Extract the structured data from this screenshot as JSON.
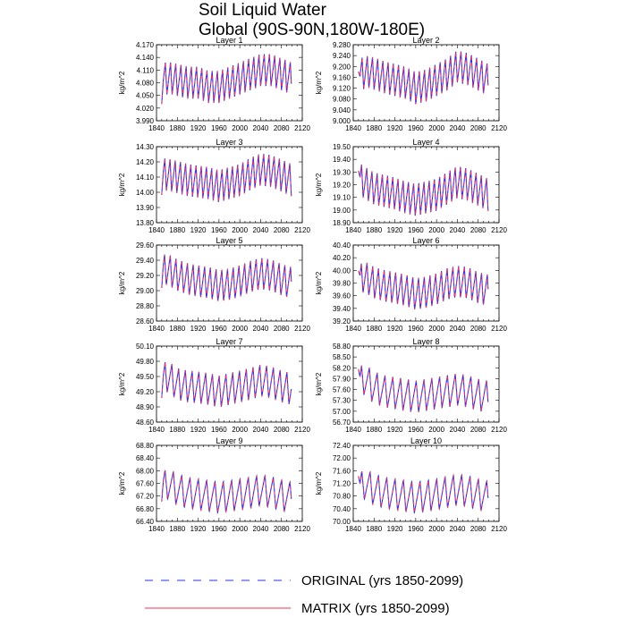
{
  "title_line1": "Soil Liquid Water",
  "title_line2": "Global (90S-90N,180W-180E)",
  "colors": {
    "original": "#2233ee",
    "matrix": "#ee3355",
    "axis": "#000000"
  },
  "legend": [
    {
      "label": "ORIGINAL (yrs 1850-2099)",
      "style": "dashed",
      "color": "#2233ee"
    },
    {
      "label": "MATRIX (yrs 1850-2099)",
      "style": "solid",
      "color": "#ee3355"
    }
  ],
  "chart_data": [
    {
      "type": "line",
      "title": "Layer 1",
      "ylabel": "kg/m^2",
      "xlabel": "",
      "x_range": [
        1850,
        2099
      ],
      "xlim": [
        1840,
        2120
      ],
      "xticks": [
        1840,
        1880,
        1920,
        1960,
        2000,
        2040,
        2080,
        2120
      ],
      "ylim": [
        3.99,
        4.17
      ],
      "yticks": [
        "3.990",
        "4.020",
        "4.050",
        "4.080",
        "4.110",
        "4.140",
        "4.170"
      ],
      "cycle_years": 10,
      "cycle_phase": 0,
      "seasonal_amp": 0.018,
      "envelope_points": {
        "x": [
          1850,
          1870,
          1900,
          1920,
          1940,
          1960,
          1980,
          2000,
          2020,
          2040,
          2060,
          2080,
          2099
        ],
        "y": [
          4.09,
          4.09,
          4.08,
          4.08,
          4.07,
          4.07,
          4.08,
          4.09,
          4.1,
          4.11,
          4.11,
          4.1,
          4.09
        ]
      },
      "series": [
        {
          "name": "ORIGINAL (yrs 1850-2099)"
        },
        {
          "name": "MATRIX (yrs 1850-2099)"
        }
      ]
    },
    {
      "type": "line",
      "title": "Layer 2",
      "ylabel": "kg/m^2",
      "xlabel": "",
      "x_range": [
        1850,
        2099
      ],
      "xlim": [
        1840,
        2120
      ],
      "xticks": [
        1840,
        1880,
        1920,
        1960,
        2000,
        2040,
        2080,
        2120
      ],
      "ylim": [
        9.0,
        9.28
      ],
      "yticks": [
        "9.000",
        "9.040",
        "9.080",
        "9.120",
        "9.160",
        "9.200",
        "9.240",
        "9.280"
      ],
      "cycle_years": 10,
      "cycle_phase": 0,
      "seasonal_amp": 0.03,
      "envelope_points": {
        "x": [
          1850,
          1870,
          1900,
          1920,
          1940,
          1960,
          1980,
          2000,
          2020,
          2040,
          2060,
          2080,
          2099
        ],
        "y": [
          9.17,
          9.18,
          9.16,
          9.15,
          9.14,
          9.12,
          9.13,
          9.15,
          9.17,
          9.2,
          9.19,
          9.17,
          9.15
        ]
      },
      "series": [
        {
          "name": "ORIGINAL (yrs 1850-2099)"
        },
        {
          "name": "MATRIX (yrs 1850-2099)"
        }
      ]
    },
    {
      "type": "line",
      "title": "Layer 3",
      "ylabel": "kg/m^2",
      "xlabel": "",
      "x_range": [
        1850,
        2099
      ],
      "xlim": [
        1840,
        2120
      ],
      "xticks": [
        1840,
        1880,
        1920,
        1960,
        2000,
        2040,
        2080,
        2120
      ],
      "ylim": [
        13.8,
        14.3
      ],
      "yticks": [
        "13.80",
        "13.90",
        "14.00",
        "14.10",
        "14.20",
        "14.30"
      ],
      "cycle_years": 10,
      "cycle_phase": 0.1,
      "seasonal_amp": 0.06,
      "envelope_points": {
        "x": [
          1850,
          1870,
          1900,
          1920,
          1940,
          1960,
          1980,
          2000,
          2020,
          2040,
          2060,
          2080,
          2099
        ],
        "y": [
          14.12,
          14.11,
          14.08,
          14.07,
          14.06,
          14.04,
          14.06,
          14.08,
          14.12,
          14.15,
          14.14,
          14.11,
          14.08
        ]
      },
      "series": [
        {
          "name": "ORIGINAL (yrs 1850-2099)"
        },
        {
          "name": "MATRIX (yrs 1850-2099)"
        }
      ]
    },
    {
      "type": "line",
      "title": "Layer 4",
      "ylabel": "kg/m^2",
      "xlabel": "",
      "x_range": [
        1850,
        2099
      ],
      "xlim": [
        1840,
        2120
      ],
      "xticks": [
        1840,
        1880,
        1920,
        1960,
        2000,
        2040,
        2080,
        2120
      ],
      "ylim": [
        18.9,
        19.5
      ],
      "yticks": [
        "18.90",
        "19.00",
        "19.10",
        "19.20",
        "19.30",
        "19.40",
        "19.50"
      ],
      "cycle_years": 10,
      "cycle_phase": 0.1,
      "seasonal_amp": 0.07,
      "envelope_points": {
        "x": [
          1850,
          1860,
          1880,
          1900,
          1920,
          1940,
          1960,
          1980,
          2000,
          2020,
          2040,
          2060,
          2080,
          2099
        ],
        "y": [
          19.25,
          19.22,
          19.17,
          19.15,
          19.13,
          19.1,
          19.08,
          19.1,
          19.12,
          19.17,
          19.22,
          19.2,
          19.16,
          19.12
        ]
      },
      "series": [
        {
          "name": "ORIGINAL (yrs 1850-2099)"
        },
        {
          "name": "MATRIX (yrs 1850-2099)"
        }
      ]
    },
    {
      "type": "line",
      "title": "Layer 5",
      "ylabel": "kg/m^2",
      "xlabel": "",
      "x_range": [
        1850,
        2099
      ],
      "xlim": [
        1840,
        2120
      ],
      "xticks": [
        1840,
        1880,
        1920,
        1960,
        2000,
        2040,
        2080,
        2120
      ],
      "ylim": [
        28.6,
        29.6
      ],
      "yticks": [
        "28.60",
        "28.80",
        "29.00",
        "29.20",
        "29.40",
        "29.60"
      ],
      "cycle_years": 11,
      "cycle_phase": 0.2,
      "seasonal_amp": 0.05,
      "envelope_points": {
        "x": [
          1850,
          1860,
          1880,
          1900,
          1920,
          1940,
          1960,
          1980,
          2000,
          2020,
          2040,
          2060,
          2080,
          2099
        ],
        "y": [
          29.25,
          29.28,
          29.2,
          29.15,
          29.12,
          29.1,
          29.06,
          29.08,
          29.12,
          29.18,
          29.22,
          29.2,
          29.14,
          29.1
        ]
      },
      "series": [
        {
          "name": "ORIGINAL (yrs 1850-2099)"
        },
        {
          "name": "MATRIX (yrs 1850-2099)"
        }
      ]
    },
    {
      "type": "line",
      "title": "Layer 6",
      "ylabel": "kg/m^2",
      "xlabel": "",
      "x_range": [
        1850,
        2099
      ],
      "xlim": [
        1840,
        2120
      ],
      "xticks": [
        1840,
        1880,
        1920,
        1960,
        2000,
        2040,
        2080,
        2120
      ],
      "ylim": [
        39.2,
        40.4
      ],
      "yticks": [
        "39.20",
        "39.40",
        "39.60",
        "39.80",
        "40.00",
        "40.20",
        "40.40"
      ],
      "cycle_years": 11,
      "cycle_phase": 0.2,
      "seasonal_amp": 0.06,
      "envelope_points": {
        "x": [
          1850,
          1860,
          1880,
          1900,
          1920,
          1940,
          1960,
          1980,
          2000,
          2020,
          2040,
          2060,
          2080,
          2099
        ],
        "y": [
          39.8,
          39.9,
          39.8,
          39.75,
          39.72,
          39.68,
          39.62,
          39.65,
          39.7,
          39.78,
          39.82,
          39.8,
          39.72,
          39.68
        ]
      },
      "series": [
        {
          "name": "ORIGINAL (yrs 1850-2099)"
        },
        {
          "name": "MATRIX (yrs 1850-2099)"
        }
      ]
    },
    {
      "type": "line",
      "title": "Layer 7",
      "ylabel": "kg/m^2",
      "xlabel": "",
      "x_range": [
        1850,
        2099
      ],
      "xlim": [
        1840,
        2120
      ],
      "xticks": [
        1840,
        1880,
        1920,
        1960,
        2000,
        2040,
        2080,
        2120
      ],
      "ylim": [
        48.6,
        50.1
      ],
      "yticks": [
        "48.60",
        "48.90",
        "49.20",
        "49.50",
        "49.80",
        "50.10"
      ],
      "cycle_years": 13,
      "cycle_phase": 0.2,
      "seasonal_amp": 0.04,
      "envelope_points": {
        "x": [
          1850,
          1860,
          1880,
          1900,
          1920,
          1940,
          1960,
          1980,
          2000,
          2020,
          2040,
          2060,
          2080,
          2099
        ],
        "y": [
          49.4,
          49.5,
          49.35,
          49.3,
          49.28,
          49.25,
          49.2,
          49.25,
          49.3,
          49.35,
          49.42,
          49.38,
          49.3,
          49.25
        ]
      },
      "series": [
        {
          "name": "ORIGINAL (yrs 1850-2099)"
        },
        {
          "name": "MATRIX (yrs 1850-2099)"
        }
      ]
    },
    {
      "type": "line",
      "title": "Layer 8",
      "ylabel": "kg/m^2",
      "xlabel": "",
      "x_range": [
        1850,
        2099
      ],
      "xlim": [
        1840,
        2120
      ],
      "xticks": [
        1840,
        1880,
        1920,
        1960,
        2000,
        2040,
        2080,
        2120
      ],
      "ylim": [
        56.7,
        58.8
      ],
      "yticks": [
        "56.70",
        "57.00",
        "57.30",
        "57.60",
        "57.90",
        "58.20",
        "58.50",
        "58.80"
      ],
      "cycle_years": 15,
      "cycle_phase": 0.3,
      "seasonal_amp": 0.05,
      "envelope_points": {
        "x": [
          1850,
          1860,
          1880,
          1900,
          1920,
          1940,
          1960,
          1980,
          2000,
          2020,
          2040,
          2060,
          2080,
          2099
        ],
        "y": [
          57.7,
          57.9,
          57.65,
          57.55,
          57.5,
          57.45,
          57.4,
          57.45,
          57.5,
          57.55,
          57.6,
          57.55,
          57.45,
          57.4
        ]
      },
      "series": [
        {
          "name": "ORIGINAL (yrs 1850-2099)"
        },
        {
          "name": "MATRIX (yrs 1850-2099)"
        }
      ]
    },
    {
      "type": "line",
      "title": "Layer 9",
      "ylabel": "kg/m^2",
      "xlabel": "",
      "x_range": [
        1850,
        2099
      ],
      "xlim": [
        1840,
        2120
      ],
      "xticks": [
        1840,
        1880,
        1920,
        1960,
        2000,
        2040,
        2080,
        2120
      ],
      "ylim": [
        66.4,
        68.8
      ],
      "yticks": [
        "66.40",
        "66.80",
        "67.20",
        "67.60",
        "68.00",
        "68.40",
        "68.80"
      ],
      "cycle_years": 16,
      "cycle_phase": 0.3,
      "seasonal_amp": 0.06,
      "envelope_points": {
        "x": [
          1850,
          1860,
          1880,
          1900,
          1920,
          1940,
          1960,
          1980,
          2000,
          2020,
          2040,
          2060,
          2080,
          2099
        ],
        "y": [
          67.4,
          67.6,
          67.4,
          67.3,
          67.25,
          67.2,
          67.15,
          67.2,
          67.25,
          67.3,
          67.38,
          67.32,
          67.22,
          67.15
        ]
      },
      "series": [
        {
          "name": "ORIGINAL (yrs 1850-2099)"
        },
        {
          "name": "MATRIX (yrs 1850-2099)"
        }
      ]
    },
    {
      "type": "line",
      "title": "Layer 10",
      "ylabel": "kg/m^2",
      "xlabel": "",
      "x_range": [
        1850,
        2099
      ],
      "xlim": [
        1840,
        2120
      ],
      "xticks": [
        1840,
        1880,
        1920,
        1960,
        2000,
        2040,
        2080,
        2120
      ],
      "ylim": [
        70.0,
        72.4
      ],
      "yticks": [
        "70.00",
        "70.40",
        "70.80",
        "71.20",
        "71.60",
        "72.00",
        "72.40"
      ],
      "cycle_years": 16,
      "cycle_phase": 0.3,
      "seasonal_amp": 0.06,
      "envelope_points": {
        "x": [
          1850,
          1860,
          1880,
          1900,
          1920,
          1940,
          1960,
          1980,
          2000,
          2020,
          2040,
          2060,
          2080,
          2099
        ],
        "y": [
          70.9,
          71.2,
          71.0,
          70.9,
          70.85,
          70.8,
          70.75,
          70.8,
          70.85,
          70.92,
          71.0,
          70.95,
          70.85,
          70.78
        ]
      },
      "series": [
        {
          "name": "ORIGINAL (yrs 1850-2099)"
        },
        {
          "name": "MATRIX (yrs 1850-2099)"
        }
      ]
    }
  ]
}
